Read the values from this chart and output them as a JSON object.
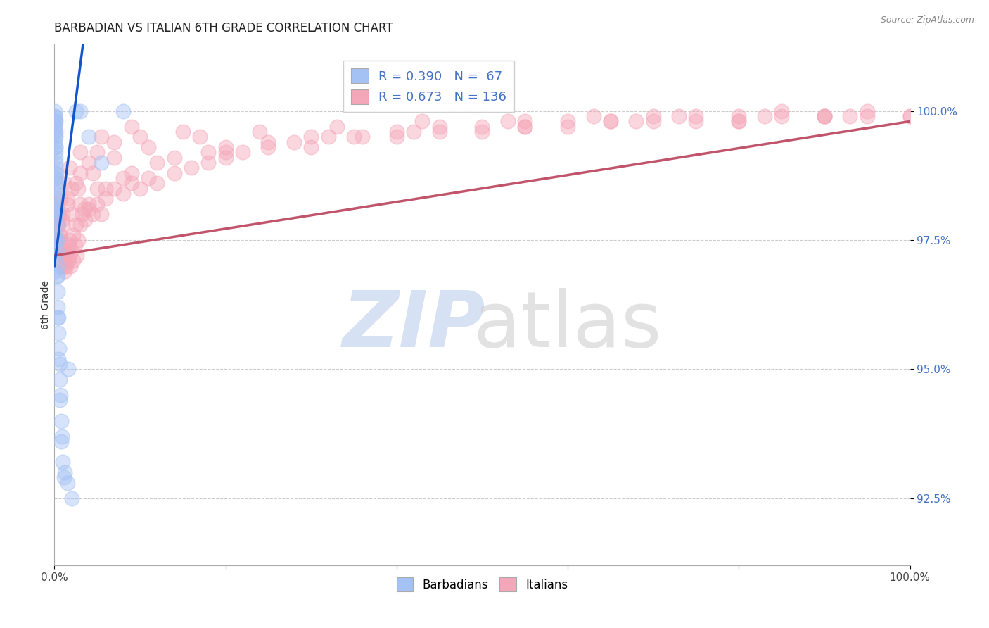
{
  "title": "BARBADIAN VS ITALIAN 6TH GRADE CORRELATION CHART",
  "source_text": "Source: ZipAtlas.com",
  "ylabel": "6th Grade",
  "xmin": 0.0,
  "xmax": 100.0,
  "ymin": 91.2,
  "ymax": 101.3,
  "yticks": [
    92.5,
    95.0,
    97.5,
    100.0
  ],
  "ytick_labels": [
    "92.5%",
    "95.0%",
    "97.5%",
    "100.0%"
  ],
  "xticks": [
    0.0,
    20.0,
    40.0,
    60.0,
    80.0,
    100.0
  ],
  "xtick_labels": [
    "0.0%",
    "",
    "",
    "",
    "",
    "100.0%"
  ],
  "legend_barbadian": "R = 0.390   N =  67",
  "legend_italian": "R = 0.673   N = 136",
  "legend_label_barbadian": "Barbadians",
  "legend_label_italian": "Italians",
  "color_barbadian": "#a4c2f4",
  "color_italian": "#f4a7b9",
  "trendline_color_barbadian": "#1155cc",
  "trendline_color_italian": "#c0546a",
  "background_color": "#ffffff",
  "barb_x": [
    0.05,
    0.05,
    0.05,
    0.06,
    0.06,
    0.07,
    0.07,
    0.08,
    0.08,
    0.09,
    0.1,
    0.1,
    0.11,
    0.12,
    0.13,
    0.14,
    0.15,
    0.16,
    0.17,
    0.18,
    0.2,
    0.2,
    0.21,
    0.22,
    0.23,
    0.25,
    0.27,
    0.3,
    0.32,
    0.35,
    0.38,
    0.4,
    0.42,
    0.45,
    0.5,
    0.55,
    0.6,
    0.65,
    0.7,
    0.8,
    0.9,
    1.0,
    1.2,
    1.5,
    2.0,
    2.5,
    3.0,
    4.0,
    5.5,
    8.0,
    0.05,
    0.06,
    0.07,
    0.08,
    0.09,
    0.1,
    0.12,
    0.15,
    0.18,
    0.22,
    0.28,
    0.35,
    0.45,
    0.6,
    0.8,
    1.1,
    1.6
  ],
  "barb_y": [
    99.8,
    99.6,
    99.9,
    100.0,
    99.7,
    99.9,
    99.5,
    99.8,
    99.4,
    99.7,
    99.6,
    99.2,
    99.5,
    99.3,
    99.1,
    98.9,
    99.0,
    98.8,
    98.7,
    98.5,
    98.8,
    98.4,
    98.6,
    98.3,
    98.1,
    98.0,
    97.8,
    97.5,
    97.3,
    97.0,
    96.8,
    96.5,
    96.2,
    96.0,
    95.7,
    95.4,
    95.1,
    94.8,
    94.5,
    94.0,
    93.7,
    93.2,
    93.0,
    92.8,
    92.5,
    100.0,
    100.0,
    99.5,
    99.0,
    100.0,
    98.2,
    97.9,
    97.6,
    97.2,
    96.9,
    99.8,
    99.3,
    98.7,
    98.1,
    97.5,
    96.8,
    96.0,
    95.2,
    94.4,
    93.6,
    92.9,
    95.0
  ],
  "ital_x": [
    0.3,
    0.4,
    0.5,
    0.6,
    0.7,
    0.8,
    0.9,
    1.0,
    1.1,
    1.2,
    1.3,
    1.4,
    1.5,
    1.6,
    1.7,
    1.8,
    1.9,
    2.0,
    2.2,
    2.4,
    2.6,
    2.8,
    3.0,
    3.3,
    3.6,
    4.0,
    4.5,
    5.0,
    5.5,
    6.0,
    7.0,
    8.0,
    9.0,
    10.0,
    11.0,
    12.0,
    14.0,
    16.0,
    18.0,
    20.0,
    22.0,
    25.0,
    28.0,
    32.0,
    36.0,
    40.0,
    45.0,
    50.0,
    55.0,
    60.0,
    65.0,
    70.0,
    75.0,
    80.0,
    85.0,
    90.0,
    95.0,
    100.0,
    1.0,
    1.5,
    2.0,
    2.5,
    3.0,
    4.0,
    5.0,
    7.0,
    10.0,
    15.0,
    20.0,
    30.0,
    40.0,
    50.0,
    60.0,
    70.0,
    80.0,
    90.0,
    0.5,
    1.0,
    2.0,
    3.0,
    5.0,
    8.0,
    12.0,
    18.0,
    25.0,
    35.0,
    45.0,
    55.0,
    65.0,
    75.0,
    85.0,
    95.0,
    1.2,
    1.8,
    2.5,
    3.5,
    0.8,
    1.3,
    2.2,
    4.0,
    6.0,
    9.0,
    14.0,
    20.0,
    30.0,
    42.0,
    55.0,
    68.0,
    80.0,
    90.0,
    100.0,
    0.4,
    0.6,
    0.9,
    1.5,
    2.8,
    4.5,
    7.0,
    11.0,
    17.0,
    24.0,
    33.0,
    43.0,
    53.0,
    63.0,
    73.0,
    83.0,
    93.0,
    0.35,
    0.55,
    0.75,
    1.1,
    1.8,
    3.0,
    5.5,
    9.0
  ],
  "ital_y": [
    98.2,
    98.0,
    97.8,
    97.6,
    97.5,
    97.4,
    97.3,
    97.1,
    97.0,
    96.9,
    97.2,
    97.0,
    97.3,
    97.1,
    97.4,
    97.2,
    97.0,
    97.3,
    97.1,
    97.4,
    97.2,
    97.5,
    97.8,
    98.0,
    97.9,
    98.1,
    98.0,
    98.2,
    98.0,
    98.3,
    98.5,
    98.4,
    98.6,
    98.5,
    98.7,
    98.6,
    98.8,
    98.9,
    99.0,
    99.1,
    99.2,
    99.3,
    99.4,
    99.5,
    99.5,
    99.6,
    99.7,
    99.7,
    99.8,
    99.8,
    99.8,
    99.9,
    99.9,
    99.9,
    100.0,
    99.9,
    100.0,
    99.9,
    98.0,
    98.3,
    98.5,
    98.6,
    98.8,
    99.0,
    99.2,
    99.4,
    99.5,
    99.6,
    99.2,
    99.3,
    99.5,
    99.6,
    99.7,
    99.8,
    99.8,
    99.9,
    97.5,
    97.8,
    98.0,
    98.2,
    98.5,
    98.7,
    99.0,
    99.2,
    99.4,
    99.5,
    99.6,
    99.7,
    99.8,
    99.8,
    99.9,
    99.9,
    97.2,
    97.5,
    97.8,
    98.1,
    97.0,
    97.3,
    97.6,
    98.2,
    98.5,
    98.8,
    99.1,
    99.3,
    99.5,
    99.6,
    99.7,
    99.8,
    99.8,
    99.9,
    99.9,
    97.4,
    97.6,
    97.9,
    98.2,
    98.5,
    98.8,
    99.1,
    99.3,
    99.5,
    99.6,
    99.7,
    99.8,
    99.8,
    99.9,
    99.9,
    99.9,
    99.9,
    97.8,
    98.0,
    98.3,
    98.6,
    98.9,
    99.2,
    99.5,
    99.7
  ],
  "barb_trendline_x": [
    0.0,
    3.5
  ],
  "barb_trendline_y": [
    97.0,
    101.5
  ],
  "ital_trendline_x": [
    0.0,
    100.0
  ],
  "ital_trendline_y": [
    97.2,
    99.8
  ]
}
